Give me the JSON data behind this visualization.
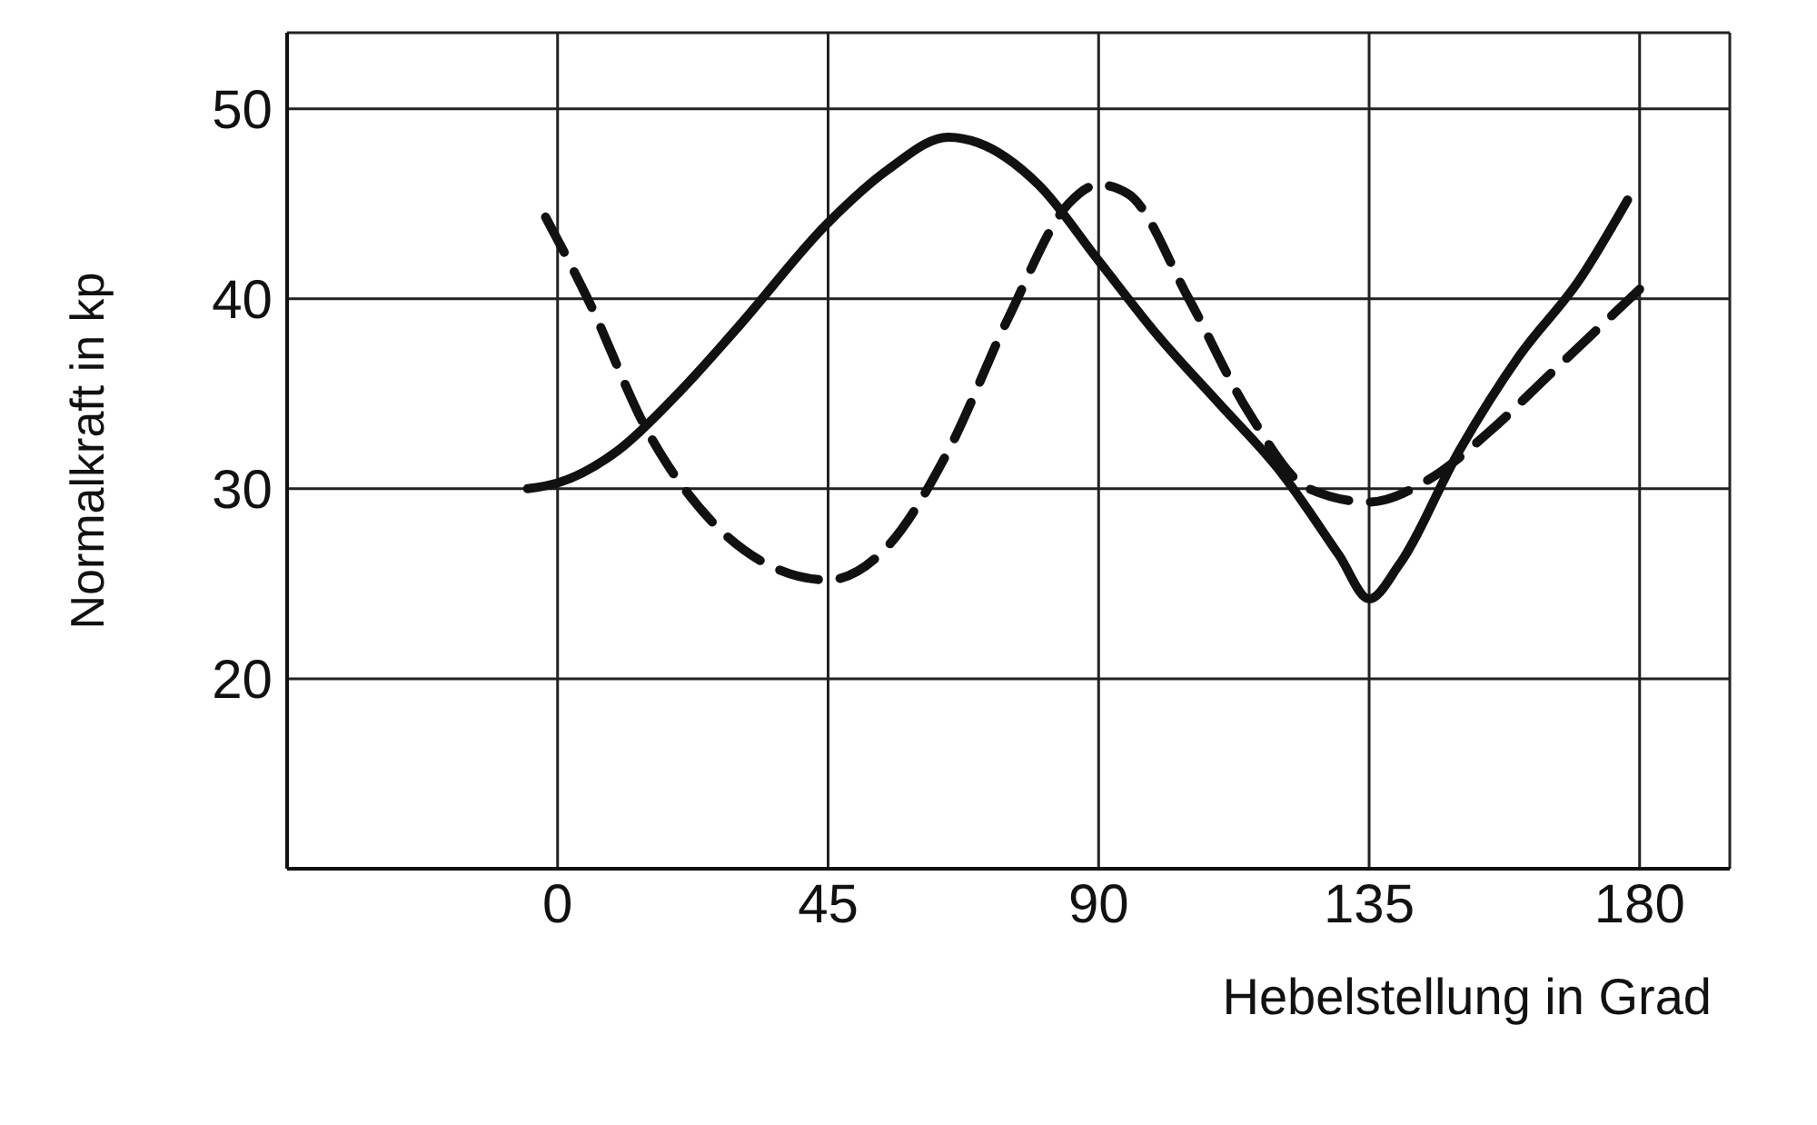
{
  "chart_data": {
    "type": "line",
    "xlabel": "Hebelstellung  in Grad",
    "ylabel": "Normalkraft in kp",
    "xlim": [
      -45,
      195
    ],
    "ylim": [
      10,
      54
    ],
    "xticks": [
      0,
      45,
      90,
      135,
      180
    ],
    "yticks": [
      20,
      30,
      40,
      50
    ],
    "grid": true,
    "marker": "none",
    "series": [
      {
        "color": "#111111",
        "line_style": "solid",
        "x": [
          -5,
          0,
          10,
          20,
          30,
          45,
          55,
          65,
          70,
          80,
          90,
          100,
          110,
          120,
          130,
          135,
          140,
          150,
          160,
          170,
          178
        ],
        "values": [
          30,
          30.3,
          32,
          35,
          38.5,
          44,
          46.8,
          48.5,
          48.2,
          46,
          42,
          38,
          34.5,
          31,
          26.5,
          24.2,
          26,
          32,
          37,
          41,
          45.2
        ]
      },
      {
        "color": "#111111",
        "line_style": "dashed",
        "x": [
          -2,
          5,
          15,
          25,
          35,
          45,
          55,
          65,
          75,
          85,
          90,
          95,
          105,
          115,
          125,
          135,
          145,
          155,
          165,
          180
        ],
        "values": [
          44.3,
          40,
          33,
          28.5,
          26,
          25.2,
          27,
          32,
          39,
          45,
          46,
          45.5,
          40,
          34,
          30,
          29.3,
          30.5,
          33,
          36,
          40.5
        ]
      }
    ]
  }
}
